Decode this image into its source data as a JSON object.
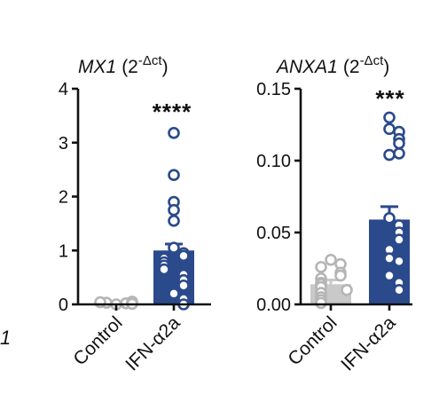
{
  "chart_data": [
    {
      "type": "bar",
      "title_gene": "MX1",
      "title_unit_prefix": "(2",
      "title_unit_sup": "-Δct",
      "title_unit_suffix": ")",
      "ylim": [
        0,
        4
      ],
      "yticks": [
        "0",
        "1",
        "2",
        "3",
        "4"
      ],
      "categories": [
        "Control",
        "IFN-α2a"
      ],
      "values": [
        0.02,
        1.0
      ],
      "error_upper": [
        0.03,
        1.12
      ],
      "significance": "****",
      "points": [
        [
          0.0,
          0.02,
          0.03,
          0.05,
          0.04,
          0.01
        ],
        [
          3.18,
          2.4,
          1.9,
          1.75,
          1.55,
          1.05,
          0.95,
          0.9,
          0.85,
          0.78,
          0.72,
          0.65,
          0.55,
          0.45,
          0.35,
          0.2,
          0.1,
          0.0
        ]
      ],
      "colors": {
        "control": "#c9c9c9",
        "treated": "#2b4a8c",
        "point_control_edge": "#b5b5b5",
        "point_treated_edge": "#2b4a8c"
      }
    },
    {
      "type": "bar",
      "title_gene": "ANXA1",
      "title_unit_prefix": "(2",
      "title_unit_sup": "-Δct",
      "title_unit_suffix": ")",
      "ylim": [
        0,
        0.15
      ],
      "yticks": [
        "0.00",
        "0.05",
        "0.10",
        "0.15"
      ],
      "categories": [
        "Control",
        "IFN-α2a"
      ],
      "values": [
        0.014,
        0.059
      ],
      "error_upper": [
        0.017,
        0.068
      ],
      "significance": "***",
      "points": [
        [
          0.031,
          0.028,
          0.026,
          0.022,
          0.02,
          0.018,
          0.015,
          0.014,
          0.012,
          0.01,
          0.008,
          0.005,
          0.003,
          0.001
        ],
        [
          0.13,
          0.122,
          0.12,
          0.115,
          0.112,
          0.104,
          0.105,
          0.06,
          0.055,
          0.05,
          0.045,
          0.038,
          0.032,
          0.03,
          0.02,
          0.015,
          0.01
        ]
      ],
      "colors": {
        "control": "#c9c9c9",
        "treated": "#2b4a8c",
        "point_control_edge": "#b5b5b5",
        "point_treated_edge": "#2b4a8c"
      }
    }
  ],
  "edge_fragments": {
    "left_glyph": "1"
  }
}
